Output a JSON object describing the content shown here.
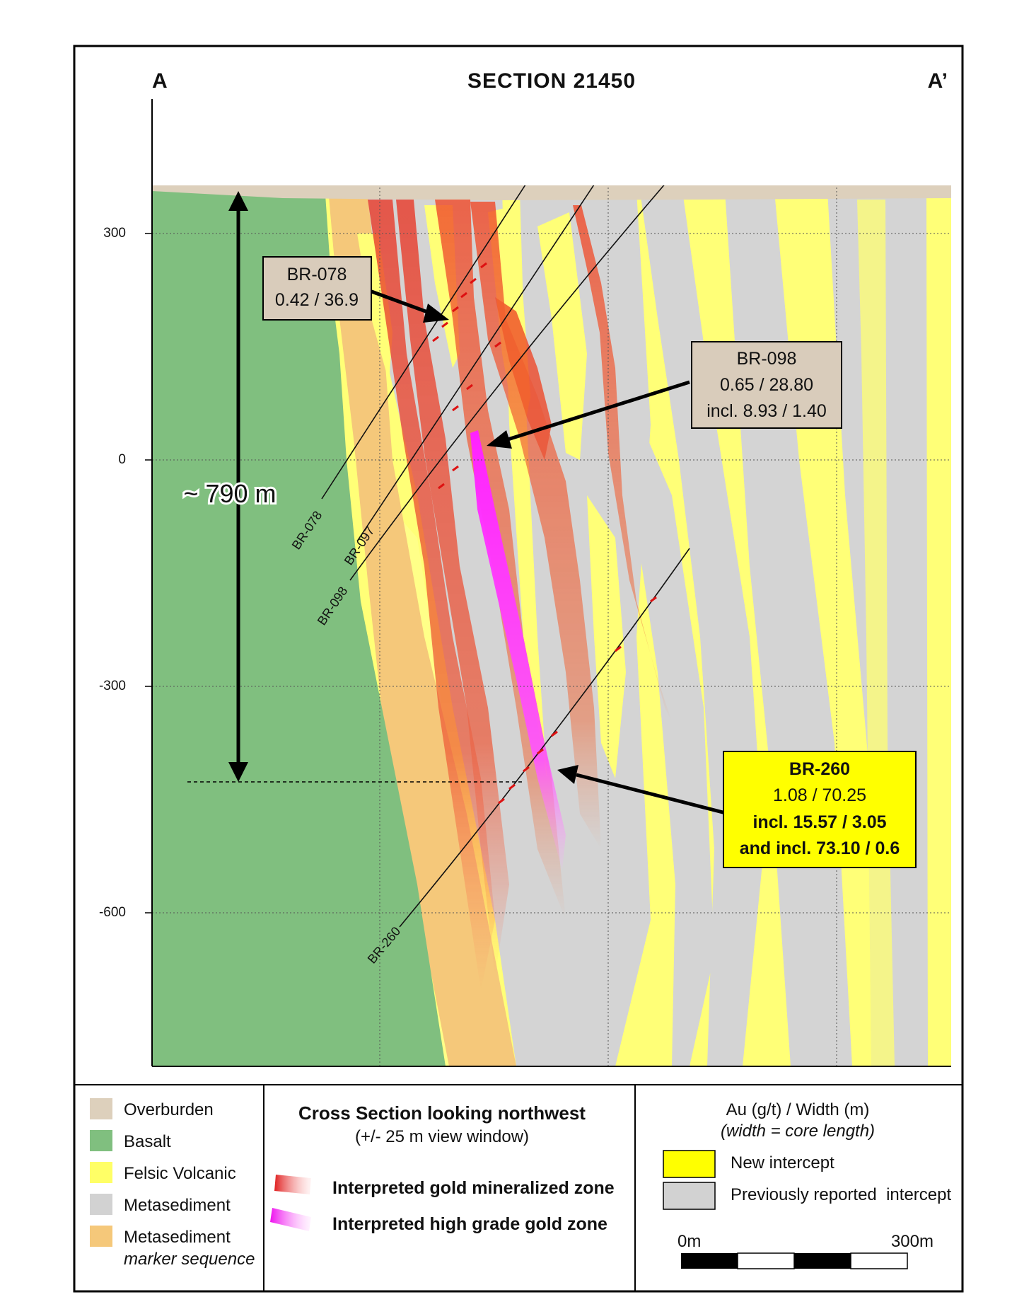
{
  "section": {
    "title": "SECTION 21450",
    "left_label": "A",
    "right_label": "A’"
  },
  "axis": {
    "ticks": [
      "300",
      "0",
      "-300",
      "-600"
    ]
  },
  "depth_label": "~ 790 m",
  "holes": [
    {
      "id": "BR-078"
    },
    {
      "id": "BR-097"
    },
    {
      "id": "BR-098"
    },
    {
      "id": "BR-260"
    }
  ],
  "callouts": {
    "br078": {
      "line1": "BR-078",
      "line2": "0.42 / 36.9"
    },
    "br098": {
      "line1": "BR-098",
      "line2": "0.65 / 28.80",
      "line3": "incl. 8.93 / 1.40"
    },
    "br260": {
      "line1": "BR-260",
      "line2": "1.08 / 70.25",
      "line3": "incl. 15.57 / 3.05",
      "line4": "and incl. 73.10 / 0.6"
    }
  },
  "legend": {
    "lithology": [
      {
        "label": "Overburden",
        "color": "#ddd0bc"
      },
      {
        "label": "Basalt",
        "color": "#80bf7f"
      },
      {
        "label": "Felsic Volcanic",
        "color": "#ffff66"
      },
      {
        "label": "Metasediment",
        "color": "#d2d2d2"
      },
      {
        "label": "Metasediment",
        "sublabel": "marker sequence",
        "color": "#f5c87a"
      }
    ],
    "center": {
      "title": "Cross Section looking northwest",
      "subtitle": "(+/- 25 m view window)",
      "zone1": "Interpreted gold mineralized zone",
      "zone2": "Interpreted high grade gold zone"
    },
    "right": {
      "title": "Au (g/t) / Width (m)",
      "subtitle": "(width = core length)",
      "new": "New intercept",
      "previous": "Previously reported  intercept",
      "scale_start": "0m",
      "scale_end": "300m"
    }
  },
  "colors": {
    "overburden": "#ddd0bc",
    "basalt": "#80bf7f",
    "felsic": "#ffff66",
    "metased": "#d2d2d2",
    "marker": "#f5c87a",
    "mineralized": "#ee3322",
    "high_grade": "#ee22ee",
    "new_box": "#ffff00",
    "old_box": "#d9ccbb"
  }
}
